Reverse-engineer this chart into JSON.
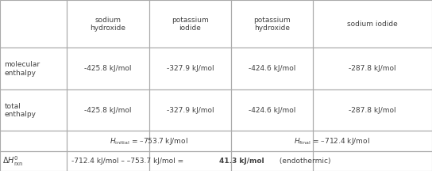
{
  "col_headers": [
    "sodium\nhydroxide",
    "potassium\niodide",
    "potassium\nhydroxide",
    "sodium iodide"
  ],
  "mol_enthalpy": [
    "-425.8 kJ/mol",
    "-327.9 kJ/mol",
    "-424.6 kJ/mol",
    "-287.8 kJ/mol"
  ],
  "tot_enthalpy": [
    "-425.8 kJ/mol",
    "-327.9 kJ/mol",
    "-424.6 kJ/mol",
    "-287.8 kJ/mol"
  ],
  "h_initial": "-753.7 kJ/mol",
  "h_final": "-712.4 kJ/mol",
  "dhrxn_prefix": "-712.4 kJ/mol – –753.7 kJ/mol = ",
  "dhrxn_bold": "41.3 kJ/mol",
  "dhrxn_suffix": " (endothermic)",
  "bg_color": "#ffffff",
  "grid_color": "#aaaaaa",
  "text_color": "#404040"
}
